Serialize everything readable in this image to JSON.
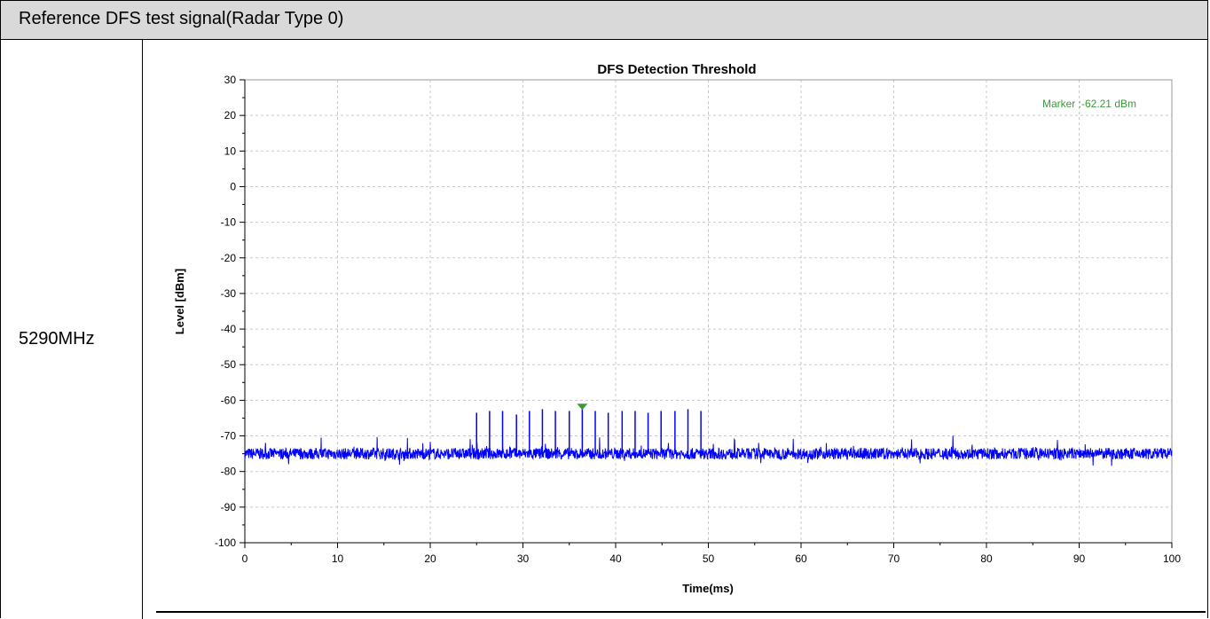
{
  "header": {
    "title": "Reference DFS test signal(Radar Type 0)"
  },
  "row": {
    "frequency_label": "5290MHz"
  },
  "chart_data": {
    "type": "line",
    "title": "DFS Detection Threshold",
    "xlabel": "Time(ms)",
    "ylabel": "Level [dBm]",
    "xlim": [
      0,
      100
    ],
    "ylim": [
      -100,
      30
    ],
    "xticks": [
      0,
      10,
      20,
      30,
      40,
      50,
      60,
      70,
      80,
      90,
      100
    ],
    "yticks": [
      30,
      20,
      10,
      0,
      -10,
      -20,
      -30,
      -40,
      -50,
      -60,
      -70,
      -80,
      -90,
      -100
    ],
    "grid": true,
    "noise_floor_dbm": -75,
    "pulses": {
      "x": [
        25.0,
        26.4,
        27.8,
        29.3,
        30.7,
        32.1,
        33.5,
        35.0,
        36.4,
        37.8,
        39.2,
        40.7,
        42.1,
        43.5,
        44.9,
        46.4,
        47.8,
        49.2
      ],
      "y": [
        -63.5,
        -63.0,
        -63.0,
        -64.0,
        -63.0,
        -62.5,
        -63.0,
        -63.0,
        -62.2,
        -63.0,
        -63.5,
        -63.0,
        -63.0,
        -63.5,
        -63.0,
        -63.0,
        -62.5,
        -63.0
      ]
    },
    "marker": {
      "x": 36.4,
      "y": -62.21,
      "label": "Marker :-62.21 dBm"
    },
    "colors": {
      "series": "#0000ff",
      "marker": "#3a9a3a",
      "grid": "#c8c8c8"
    }
  }
}
